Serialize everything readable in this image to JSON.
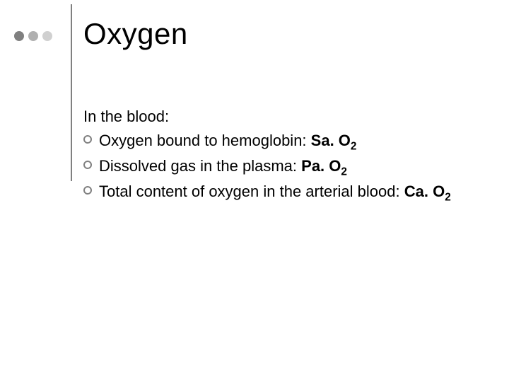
{
  "title": "Oxygen",
  "intro": "In the blood:",
  "dots": {
    "colors": [
      "#808080",
      "#b0b0b0",
      "#d0d0d0"
    ]
  },
  "vline_color": "#808080",
  "bullet_border_color": "#808080",
  "background_color": "#ffffff",
  "title_fontsize": 42,
  "body_fontsize": 22,
  "text_color": "#000000",
  "items": [
    {
      "text": "Oxygen bound to hemoglobin: ",
      "bold_prefix": "Sa. O",
      "sub": "2"
    },
    {
      "text": "Dissolved gas in the plasma: ",
      "bold_prefix": "Pa. O",
      "sub": "2"
    },
    {
      "text": "Total content of oxygen in the arterial blood: ",
      "bold_prefix": "Ca. O",
      "sub": "2"
    }
  ]
}
